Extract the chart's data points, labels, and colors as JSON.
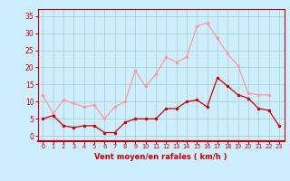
{
  "hours": [
    0,
    1,
    2,
    3,
    4,
    5,
    6,
    7,
    8,
    9,
    10,
    11,
    12,
    13,
    14,
    15,
    16,
    17,
    18,
    19,
    20,
    21,
    22,
    23
  ],
  "vent_moyen": [
    5,
    6,
    3,
    2.5,
    3,
    3,
    1,
    1,
    4,
    5,
    5,
    5,
    8,
    8,
    10,
    10.5,
    8.5,
    17,
    14.5,
    12,
    11,
    8,
    7.5,
    3
  ],
  "rafales": [
    12,
    6.5,
    10.5,
    9.5,
    8.5,
    9,
    5,
    8.5,
    10,
    19,
    14.5,
    18,
    23,
    21.5,
    23,
    32,
    33,
    28.5,
    24,
    20.5,
    12.5,
    12,
    12
  ],
  "rafales_hours": [
    0,
    1,
    2,
    3,
    4,
    5,
    6,
    7,
    8,
    9,
    10,
    11,
    12,
    13,
    14,
    15,
    16,
    17,
    18,
    19,
    20,
    21,
    22
  ],
  "color_moyen": "#cc0000",
  "color_rafales": "#ff9999",
  "bg_color": "#cceeff",
  "grid_color": "#aacccc",
  "xlabel": "Vent moyen/en rafales ( km/h )",
  "xlabel_color": "#cc0000",
  "tick_color": "#cc0000",
  "yticks": [
    0,
    5,
    10,
    15,
    20,
    25,
    30,
    35
  ],
  "ylim": [
    -1.5,
    37
  ],
  "xlim": [
    -0.5,
    23.5
  ]
}
